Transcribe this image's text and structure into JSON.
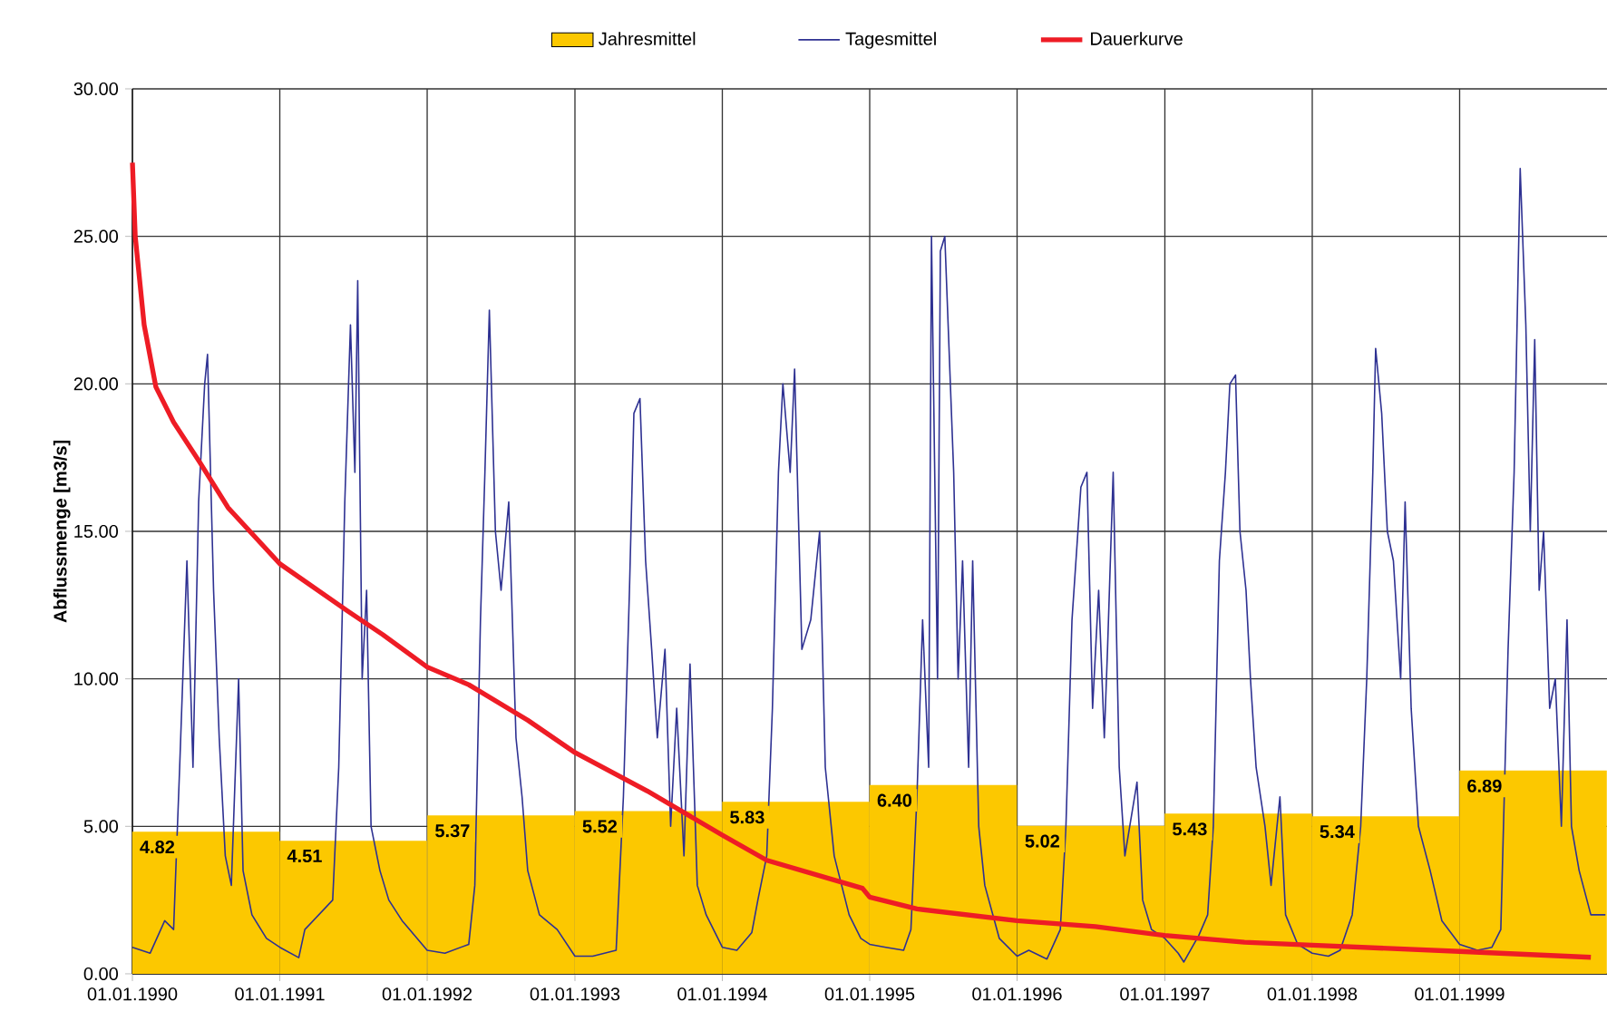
{
  "chart_data": {
    "type": "line",
    "ylabel": "Abflussmenge [m3/s]",
    "xlim": [
      "1990-01-01",
      "2000-01-01"
    ],
    "ylim": [
      0,
      30
    ],
    "xticks": [
      {
        "value": "1990-01-01",
        "label": "01.01.1990"
      },
      {
        "value": "1991-01-01",
        "label": "01.01.1991"
      },
      {
        "value": "1992-01-01",
        "label": "01.01.1992"
      },
      {
        "value": "1993-01-01",
        "label": "01.01.1993"
      },
      {
        "value": "1994-01-01",
        "label": "01.01.1994"
      },
      {
        "value": "1995-01-01",
        "label": "01.01.1995"
      },
      {
        "value": "1996-01-01",
        "label": "01.01.1996"
      },
      {
        "value": "1997-01-01",
        "label": "01.01.1997"
      },
      {
        "value": "1998-01-01",
        "label": "01.01.1998"
      },
      {
        "value": "1999-01-01",
        "label": "01.01.1999"
      }
    ],
    "yticks": [
      {
        "value": 0,
        "label": "0.00"
      },
      {
        "value": 5,
        "label": "5.00"
      },
      {
        "value": 10,
        "label": "10.00"
      },
      {
        "value": 15,
        "label": "15.00"
      },
      {
        "value": 20,
        "label": "20.00"
      },
      {
        "value": 25,
        "label": "25.00"
      },
      {
        "value": 30,
        "label": "30.00"
      }
    ],
    "grid": true,
    "legend": "top",
    "series": [
      {
        "name": "Jahresmittel",
        "type": "bar",
        "color": "#fcc800",
        "x": [
          "1990-07-02",
          "1991-07-02",
          "1992-07-02",
          "1993-07-02",
          "1994-07-02",
          "1995-07-02",
          "1996-07-02",
          "1997-07-02",
          "1998-07-02",
          "1999-07-02"
        ],
        "values": [
          4.82,
          4.51,
          5.37,
          5.52,
          5.83,
          6.4,
          5.02,
          5.43,
          5.34,
          6.89
        ],
        "value_labels": [
          "4.82",
          "4.51",
          "5.37",
          "5.52",
          "5.83",
          "6.40",
          "5.02",
          "5.43",
          "5.34",
          "6.89"
        ]
      },
      {
        "name": "Tagesmittel",
        "color": "#2e3192",
        "x": [
          "1990-01-01",
          "1990-02-14",
          "1990-03-22",
          "1990-04-13",
          "1990-04-28",
          "1990-05-16",
          "1990-05-31",
          "1990-06-14",
          "1990-06-29",
          "1990-07-06",
          "1990-07-21",
          "1990-08-04",
          "1990-08-19",
          "1990-09-03",
          "1990-09-21",
          "1990-10-02",
          "1990-10-24",
          "1990-11-29",
          "1991-01-01",
          "1991-02-17",
          "1991-03-04",
          "1991-05-12",
          "1991-05-27",
          "1991-06-11",
          "1991-06-25",
          "1991-07-06",
          "1991-07-13",
          "1991-07-24",
          "1991-08-04",
          "1991-08-15",
          "1991-09-06",
          "1991-09-28",
          "1991-10-31",
          "1992-01-01",
          "1992-02-14",
          "1992-04-13",
          "1992-04-28",
          "1992-05-12",
          "1992-05-23",
          "1992-06-03",
          "1992-06-18",
          "1992-07-02",
          "1992-07-21",
          "1992-08-08",
          "1992-08-23",
          "1992-09-06",
          "1992-10-05",
          "1992-11-18",
          "1993-01-01",
          "1993-02-14",
          "1993-04-13",
          "1993-05-01",
          "1993-05-16",
          "1993-05-27",
          "1993-06-11",
          "1993-06-25",
          "1993-07-10",
          "1993-07-24",
          "1993-08-12",
          "1993-08-26",
          "1993-09-10",
          "1993-09-28",
          "1993-10-13",
          "1993-10-31",
          "1993-11-22",
          "1994-01-01",
          "1994-02-06",
          "1994-03-15",
          "1994-03-30",
          "1994-04-21",
          "1994-05-05",
          "1994-05-20",
          "1994-05-31",
          "1994-06-18",
          "1994-06-29",
          "1994-07-17",
          "1994-08-08",
          "1994-08-30",
          "1994-09-13",
          "1994-10-05",
          "1994-11-11",
          "1994-12-10",
          "1995-01-01",
          "1995-02-10",
          "1995-03-26",
          "1995-04-13",
          "1995-04-28",
          "1995-05-12",
          "1995-05-27",
          "1995-06-03",
          "1995-06-18",
          "1995-06-25",
          "1995-07-06",
          "1995-07-17",
          "1995-07-28",
          "1995-08-08",
          "1995-08-19",
          "1995-09-03",
          "1995-09-13",
          "1995-09-28",
          "1995-10-13",
          "1995-11-18",
          "1996-01-01",
          "1996-01-30",
          "1996-03-15",
          "1996-04-17",
          "1996-05-01",
          "1996-05-16",
          "1996-06-07",
          "1996-06-22",
          "1996-07-06",
          "1996-07-21",
          "1996-08-04",
          "1996-08-12",
          "1996-08-26",
          "1996-09-10",
          "1996-09-24",
          "1996-10-24",
          "1996-11-07",
          "1996-11-29",
          "1997-01-01",
          "1997-02-03",
          "1997-02-17",
          "1997-03-26",
          "1997-04-17",
          "1997-05-01",
          "1997-05-16",
          "1997-05-31",
          "1997-06-11",
          "1997-06-25",
          "1997-07-06",
          "1997-07-21",
          "1997-08-01",
          "1997-08-15",
          "1997-09-06",
          "1997-09-21",
          "1997-10-13",
          "1997-10-27",
          "1997-11-26",
          "1998-01-01",
          "1998-02-10",
          "1998-03-11",
          "1998-04-10",
          "1998-05-01",
          "1998-05-16",
          "1998-05-31",
          "1998-06-07",
          "1998-06-22",
          "1998-07-06",
          "1998-07-21",
          "1998-08-08",
          "1998-08-19",
          "1998-09-03",
          "1998-09-21",
          "1998-10-20",
          "1998-11-18",
          "1999-01-01",
          "1999-02-14",
          "1999-03-22",
          "1999-04-13",
          "1999-05-01",
          "1999-05-16",
          "1999-05-31",
          "1999-06-14",
          "1999-06-25",
          "1999-07-06",
          "1999-07-17",
          "1999-07-28",
          "1999-08-12",
          "1999-08-26",
          "1999-09-10",
          "1999-09-24",
          "1999-10-05",
          "1999-10-24",
          "1999-11-22",
          "1999-12-28"
        ],
        "values": [
          0.9,
          0.7,
          1.8,
          1.5,
          7,
          14,
          7,
          16,
          20,
          21,
          13,
          8,
          4,
          3,
          10,
          3.5,
          2,
          1.2,
          0.9,
          0.55,
          1.5,
          2.5,
          7,
          16,
          22,
          17,
          23.5,
          10,
          13,
          5,
          3.5,
          2.5,
          1.8,
          0.8,
          0.7,
          1,
          3,
          12,
          17,
          22.5,
          15,
          13,
          16,
          8,
          6,
          3.5,
          2,
          1.5,
          0.6,
          0.6,
          0.8,
          6,
          13,
          19,
          19.5,
          14,
          11,
          8,
          11,
          5,
          9,
          4,
          10.5,
          3,
          2,
          0.9,
          0.8,
          1.4,
          2.5,
          4,
          9,
          17,
          20,
          17,
          20.5,
          11,
          12,
          15,
          7,
          4,
          2,
          1.2,
          1.0,
          0.9,
          0.8,
          1.5,
          6,
          12,
          7,
          25,
          10,
          24.5,
          25,
          21,
          17,
          10,
          14,
          7,
          14,
          5,
          3,
          1.2,
          0.6,
          0.8,
          0.5,
          1.5,
          5,
          12,
          16.5,
          17,
          9,
          13,
          8,
          11,
          17,
          7,
          4,
          6.5,
          2.5,
          1.5,
          1.2,
          0.7,
          0.4,
          1.3,
          2,
          5,
          14,
          17,
          20,
          20.3,
          15,
          13,
          10,
          7,
          5,
          3,
          6,
          2,
          1.0,
          0.7,
          0.6,
          0.8,
          2,
          5,
          10,
          17,
          21.2,
          19,
          15,
          14,
          10,
          16,
          9,
          5,
          3.5,
          1.8,
          1.0,
          0.8,
          0.9,
          1.5,
          11,
          17,
          27.3,
          22,
          15,
          21.5,
          13,
          15,
          9,
          10,
          5,
          12,
          5,
          3.5,
          2,
          2.0
        ]
      },
      {
        "name": "Dauerkurve",
        "color": "#ee1c25",
        "x": [
          "1990-01-01",
          "1990-01-08",
          "1990-01-30",
          "1990-02-28",
          "1990-04-13",
          "1990-06-14",
          "1990-08-26",
          "1991-01-01",
          "1991-06-18",
          "1991-09-13",
          "1992-01-01",
          "1992-04-13",
          "1992-09-06",
          "1993-01-01",
          "1993-06-29",
          "1994-01-01",
          "1994-04-21",
          "1994-12-14",
          "1995-01-01",
          "1995-04-28",
          "1996-01-01",
          "1996-07-13",
          "1997-01-01",
          "1997-07-17",
          "1998-01-01",
          "1999-01-01",
          "1999-11-22"
        ],
        "values": [
          27.5,
          25,
          22,
          19.9,
          18.7,
          17.4,
          15.8,
          13.9,
          12.3,
          11.5,
          10.4,
          9.8,
          8.6,
          7.5,
          6.2,
          4.7,
          3.85,
          2.9,
          2.6,
          2.2,
          1.8,
          1.6,
          1.3,
          1.07,
          0.97,
          0.76,
          0.56
        ]
      }
    ]
  }
}
